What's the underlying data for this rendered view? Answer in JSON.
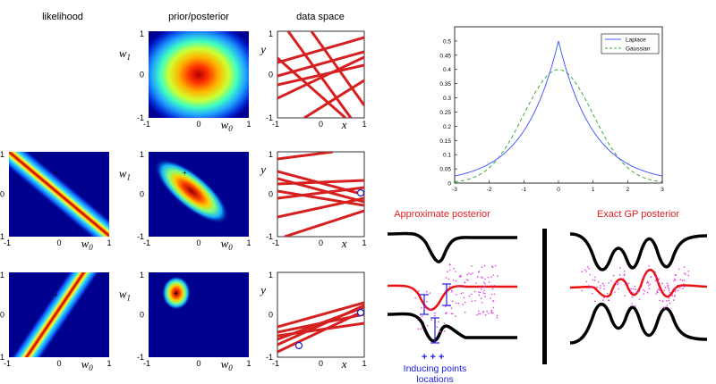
{
  "bayes_grid": {
    "column_titles": [
      "likelihood",
      "prior/posterior",
      "data space"
    ],
    "tick_labels": {
      "neg1": "-1",
      "zero": "0",
      "one": "1"
    },
    "axis_labels": {
      "w0": "w0",
      "w1": "w1",
      "x": "x",
      "y": "y"
    },
    "subscript_0": "0",
    "subscript_1": "1",
    "heatmap_colors": [
      "#00008f",
      "#0020ff",
      "#00c8ff",
      "#60ff9f",
      "#ffff00",
      "#ff6000",
      "#b00000"
    ],
    "line_color": "#d62020",
    "point_color": "#1a1ac8"
  },
  "density_plot": {
    "type": "line",
    "x_ticks": [
      "-3",
      "-2",
      "-1",
      "0",
      "1",
      "2",
      "3"
    ],
    "y_ticks": [
      "0",
      "0.05",
      "0.1",
      "0.15",
      "0.2",
      "0.25",
      "0.3",
      "0.35",
      "0.4",
      "0.45",
      "0.5"
    ],
    "xlim": [
      -3,
      3
    ],
    "ylim": [
      0,
      0.55
    ],
    "legend_position": "top-right"
  },
  "chart_data": {
    "type": "line",
    "series": [
      {
        "name": "Laplace",
        "function": "0.5*exp(-|x|)",
        "color": "#4a5cff",
        "style": "solid",
        "values": [
          [
            -3,
            0.025
          ],
          [
            -2,
            0.068
          ],
          [
            -1,
            0.184
          ],
          [
            0,
            0.5
          ],
          [
            1,
            0.184
          ],
          [
            2,
            0.068
          ],
          [
            3,
            0.025
          ]
        ]
      },
      {
        "name": "Gaussian",
        "function": "N(0,1) pdf",
        "color": "#3aa83a",
        "style": "dashed",
        "values": [
          [
            -3,
            0.004
          ],
          [
            -2,
            0.054
          ],
          [
            -1,
            0.242
          ],
          [
            0,
            0.399
          ],
          [
            1,
            0.242
          ],
          [
            2,
            0.054
          ],
          [
            3,
            0.004
          ]
        ]
      }
    ],
    "xlim": [
      -3,
      3
    ],
    "ylim": [
      0,
      0.55
    ],
    "grid": false,
    "legend": "top-right"
  },
  "gp_panels": {
    "approx_title": "Approximate posterior",
    "exact_title": "Exact GP posterior",
    "inducing_marks": "+ + +",
    "inducing_caption_line1": "Inducing points",
    "inducing_caption_line2": "locations",
    "title_color": "#e02020",
    "caption_color": "#2020e0",
    "data_color": "#e040e0"
  }
}
